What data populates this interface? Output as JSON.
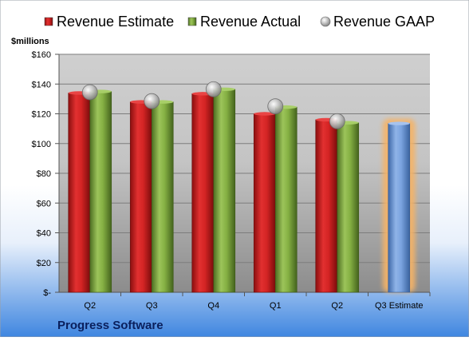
{
  "chart_data": {
    "type": "bar",
    "categories": [
      "Q2",
      "Q3",
      "Q4",
      "Q1",
      "Q2",
      "Q3 Estimate"
    ],
    "series": [
      {
        "name": "Revenue Estimate",
        "color": "#cc1f1f",
        "values": [
          134,
          128,
          133.5,
          120,
          116,
          null
        ]
      },
      {
        "name": "Revenue Actual",
        "color": "#7aa53b",
        "values": [
          135,
          128,
          136.5,
          124.5,
          114,
          null
        ]
      },
      {
        "name": "Revenue GAAP",
        "color": "#a8a8a8",
        "values": [
          134.5,
          128.5,
          136.5,
          125,
          115,
          null
        ]
      },
      {
        "name": "",
        "color": "#6f9ad8",
        "values": [
          null,
          null,
          null,
          null,
          null,
          113.5
        ]
      }
    ],
    "ylabel": "$millions",
    "yticks": [
      "$-",
      "$20",
      "$40",
      "$60",
      "$80",
      "$100",
      "$120",
      "$140",
      "$160"
    ],
    "ylim": [
      0,
      160
    ],
    "grid": true,
    "legend": "top",
    "highlight_color": "#f5b366",
    "footer": "Progress Software"
  }
}
